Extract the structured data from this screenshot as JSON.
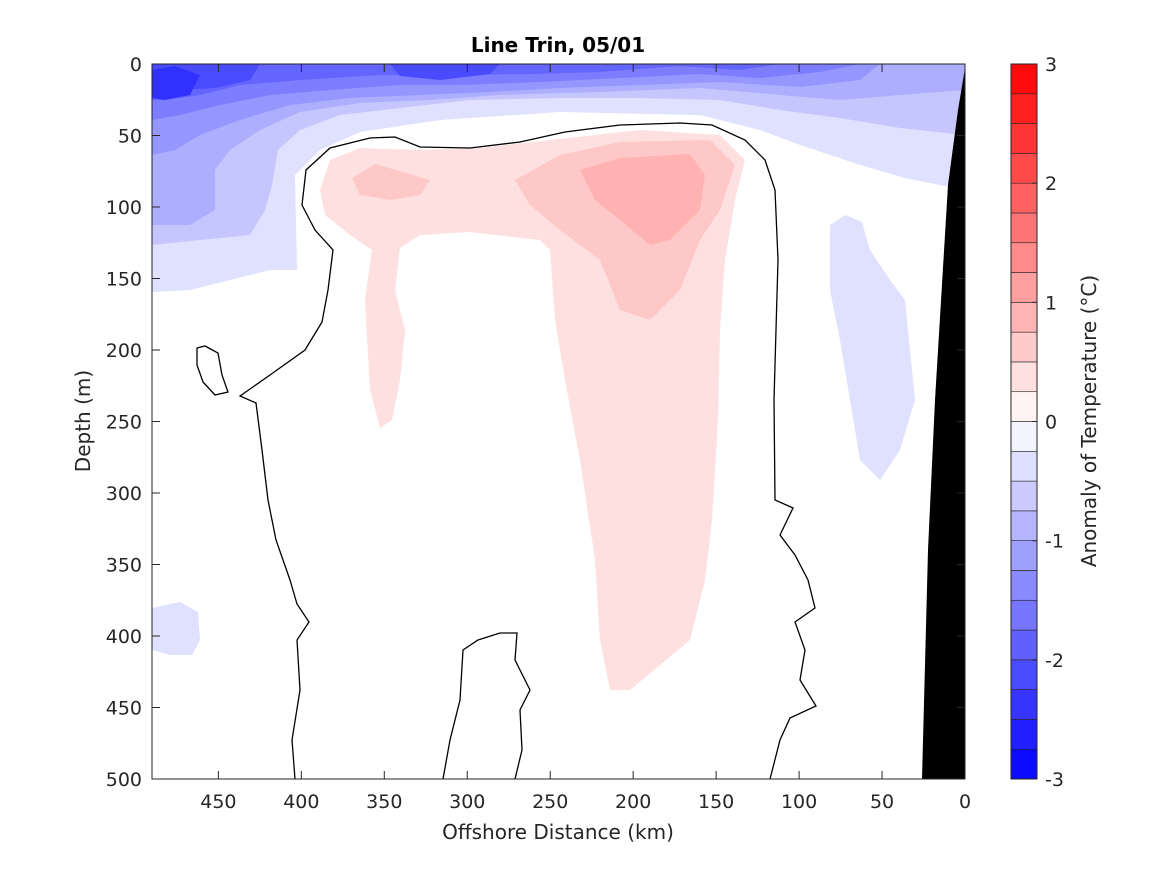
{
  "chart_data": {
    "type": "heatmap",
    "title": "Line Trin, 05/01",
    "xlabel": "Offshore Distance (km)",
    "ylabel": "Depth (m)",
    "xlim": [
      490,
      0
    ],
    "ylim": [
      0,
      500
    ],
    "x_reversed": true,
    "y_reversed": true,
    "x_ticks": [
      450,
      400,
      350,
      300,
      250,
      200,
      150,
      100,
      50,
      0
    ],
    "y_ticks": [
      0,
      50,
      100,
      150,
      200,
      250,
      300,
      350,
      400,
      450,
      500
    ],
    "colorbar": {
      "label": "Anomaly of Temperature (°C)",
      "range": [
        -3,
        3
      ],
      "ticks": [
        -3,
        -2,
        -1,
        0,
        1,
        2,
        3
      ],
      "step": 0.25,
      "colors": {
        "blue_extreme": "#0000ff",
        "white": "#ffffff",
        "red_extreme": "#ff0000"
      }
    },
    "fields": {
      "grid_unit": "km / m",
      "cold_cores": [
        {
          "x": 465,
          "y": 15,
          "value": -2.0
        },
        {
          "x": 290,
          "y": 10,
          "value": -1.75
        },
        {
          "x": 320,
          "y": 25,
          "value": -1.5
        },
        {
          "x": 180,
          "y": 15,
          "value": -1.5
        },
        {
          "x": 470,
          "y": 120,
          "value": -0.75
        },
        {
          "x": 90,
          "y": 20,
          "value": -0.5
        }
      ],
      "warm_cores": [
        {
          "x": 185,
          "y": 90,
          "value": 0.9
        },
        {
          "x": 350,
          "y": 85,
          "value": 0.5
        },
        {
          "x": 180,
          "y": 250,
          "value": 0.3
        }
      ]
    },
    "zero_contour": "black line",
    "bathymetry": "black land mask at 0–30 km"
  }
}
